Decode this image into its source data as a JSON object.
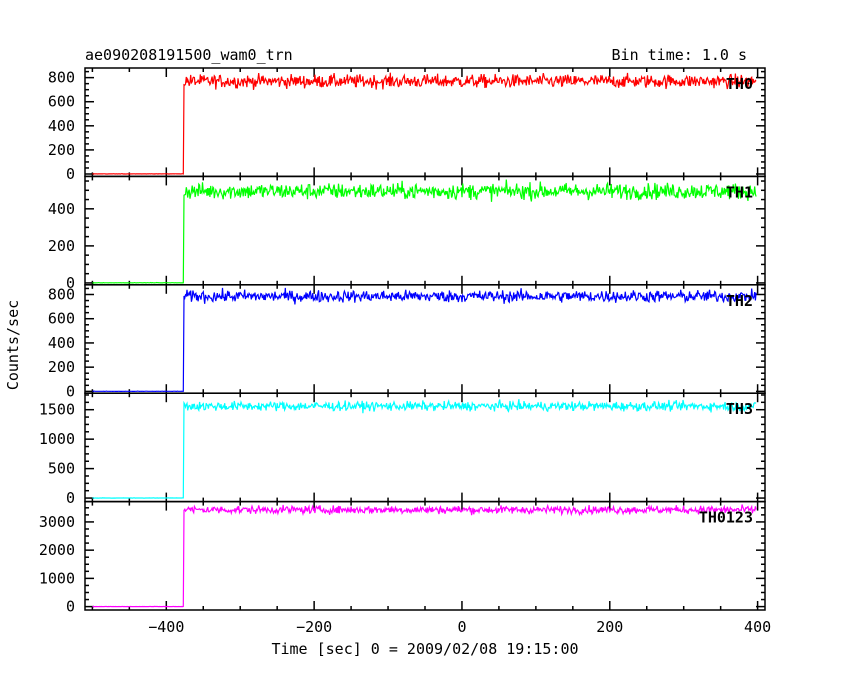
{
  "header": {
    "title": "ae090208191500_wam0_trn",
    "bin_time": "Bin time: 1.0 s"
  },
  "chart_data": {
    "type": "line",
    "xlabel": "Time [sec] 0 = 2009/02/08 19:15:00",
    "ylabel": "Counts/sec",
    "xlim": [
      -510,
      410
    ],
    "xticks": [
      -400,
      -200,
      0,
      200,
      400
    ],
    "onset_time": -376,
    "panels": [
      {
        "name": "TH0",
        "color": "#ff0000",
        "ylim": [
          -20,
          880
        ],
        "yticks": [
          0,
          200,
          400,
          600,
          800
        ],
        "pre_level": 0,
        "post_level": 770,
        "noise": 28
      },
      {
        "name": "TH1",
        "color": "#00ff00",
        "ylim": [
          -10,
          575
        ],
        "yticks": [
          0,
          200,
          400
        ],
        "pre_level": 0,
        "post_level": 495,
        "noise": 22
      },
      {
        "name": "TH2",
        "color": "#0000ff",
        "ylim": [
          -15,
          880
        ],
        "yticks": [
          0,
          200,
          400,
          600,
          800
        ],
        "pre_level": 0,
        "post_level": 785,
        "noise": 25
      },
      {
        "name": "TH3",
        "color": "#00ffff",
        "ylim": [
          -60,
          1780
        ],
        "yticks": [
          0,
          500,
          1000,
          1500
        ],
        "pre_level": 0,
        "post_level": 1560,
        "noise": 40
      },
      {
        "name": "TH0123",
        "color": "#ff00ff",
        "ylim": [
          -120,
          3720
        ],
        "yticks": [
          0,
          1000,
          2000,
          3000
        ],
        "pre_level": 0,
        "post_level": 3430,
        "noise": 70
      }
    ]
  }
}
